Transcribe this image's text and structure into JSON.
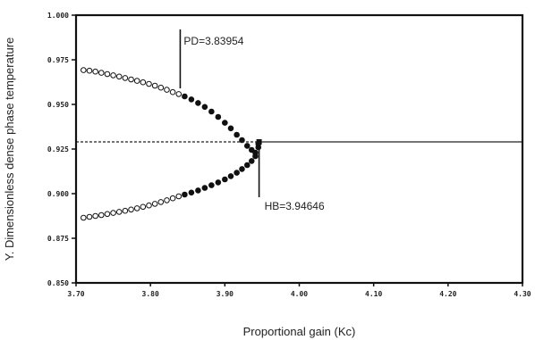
{
  "chart_data": {
    "type": "scatter",
    "title": "",
    "xlabel": "Proportional gain (Kc)",
    "ylabel": "Y. Dimensionless dense phase temperature",
    "xlim": [
      3.7,
      4.3
    ],
    "ylim": [
      0.85,
      1.0
    ],
    "x_ticks": [
      3.7,
      3.8,
      3.9,
      4.0,
      4.1,
      4.2,
      4.3
    ],
    "y_ticks": [
      0.85,
      0.875,
      0.9,
      0.925,
      0.95,
      0.975,
      1.0
    ],
    "x_tick_labels": [
      "3.70",
      "3.80",
      "3.90",
      "4.00",
      "4.10",
      "4.20",
      "4.30"
    ],
    "y_tick_labels": [
      "0.850",
      "0.875",
      "0.900",
      "0.925",
      "0.950",
      "0.975",
      "1.000"
    ],
    "grid": false,
    "series": [
      {
        "marker": "open-circle",
        "x": [
          3.71,
          3.718,
          3.726,
          3.734,
          3.742,
          3.75,
          3.758,
          3.766,
          3.774,
          3.782,
          3.79,
          3.798,
          3.806,
          3.814,
          3.822,
          3.83,
          3.838
        ],
        "y": [
          0.9692,
          0.9689,
          0.9684,
          0.9677,
          0.967,
          0.9663,
          0.9656,
          0.9648,
          0.964,
          0.9632,
          0.9624,
          0.9615,
          0.9605,
          0.9594,
          0.9582,
          0.9569,
          0.9558
        ]
      },
      {
        "marker": "filled-circle",
        "x": [
          3.846,
          3.855,
          3.864,
          3.873,
          3.882,
          3.891,
          3.9,
          3.908,
          3.916,
          3.923,
          3.93,
          3.936,
          3.941,
          3.945
        ],
        "y": [
          0.9545,
          0.9528,
          0.9508,
          0.9486,
          0.946,
          0.943,
          0.9397,
          0.9366,
          0.933,
          0.93,
          0.9268,
          0.9245,
          0.923,
          0.928
        ]
      },
      {
        "marker": "open-circle",
        "x": [
          3.71,
          3.718,
          3.726,
          3.734,
          3.742,
          3.75,
          3.758,
          3.766,
          3.774,
          3.782,
          3.79,
          3.798,
          3.806,
          3.814,
          3.822,
          3.83,
          3.838
        ],
        "y": [
          0.8865,
          0.887,
          0.8875,
          0.888,
          0.8886,
          0.8892,
          0.8898,
          0.8904,
          0.8911,
          0.8918,
          0.8926,
          0.8934,
          0.8943,
          0.8953,
          0.8963,
          0.8974,
          0.8985
        ]
      },
      {
        "marker": "filled-circle",
        "x": [
          3.846,
          3.855,
          3.864,
          3.873,
          3.882,
          3.891,
          3.9,
          3.908,
          3.916,
          3.923,
          3.93,
          3.936,
          3.941,
          3.945
        ],
        "y": [
          0.8995,
          0.9006,
          0.9018,
          0.9032,
          0.9047,
          0.9063,
          0.908,
          0.9098,
          0.9117,
          0.9138,
          0.916,
          0.9183,
          0.921,
          0.926
        ]
      },
      {
        "marker": "dashed-line",
        "x": [
          3.7,
          3.946
        ],
        "y": [
          0.929,
          0.929
        ]
      },
      {
        "marker": "solid-line",
        "x": [
          3.946,
          4.3
        ],
        "y": [
          0.929,
          0.929
        ]
      }
    ],
    "annotations": [
      {
        "text": "PD=3.83954",
        "x": 3.84,
        "y": 0.9575
      },
      {
        "text": "HB=3.94646",
        "x": 3.946,
        "y": 0.929
      }
    ]
  }
}
